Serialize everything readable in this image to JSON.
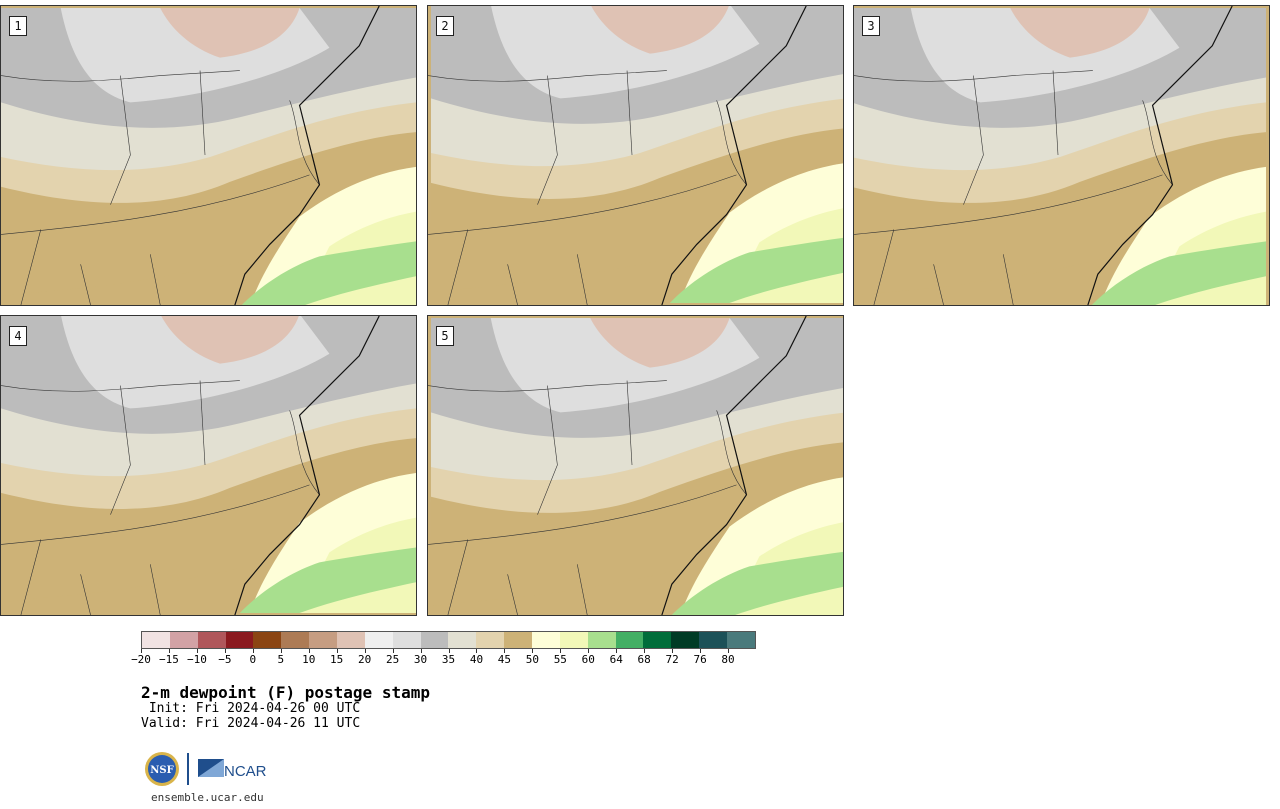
{
  "panels": [
    {
      "label": "1"
    },
    {
      "label": "2"
    },
    {
      "label": "3"
    },
    {
      "label": "4"
    },
    {
      "label": "5"
    }
  ],
  "colorbar": {
    "colors": [
      "#f1e3e3",
      "#d2a2a5",
      "#b0575b",
      "#8b1a1f",
      "#8b4513",
      "#ad7b55",
      "#c69d82",
      "#dfc2b4",
      "#efefef",
      "#dedede",
      "#bcbcbc",
      "#e2e0d2",
      "#e3d3ae",
      "#cdb277",
      "#fefed8",
      "#f2f8b8",
      "#a8df8e",
      "#43af64",
      "#006d3a",
      "#003b25",
      "#1c5158",
      "#4a7a7c"
    ],
    "ticks": [
      "−20",
      "−15",
      "−10",
      "−5",
      "0",
      "5",
      "10",
      "15",
      "20",
      "25",
      "30",
      "35",
      "40",
      "45",
      "50",
      "55",
      "60",
      "64",
      "68",
      "72",
      "76",
      "80"
    ]
  },
  "title": "2-m dewpoint (F) postage stamp",
  "init": " Init: Fri 2024-04-26 00 UTC",
  "valid": "Valid: Fri 2024-04-26 11 UTC",
  "logos": {
    "nsf": "NSF",
    "ncar": "NCAR"
  },
  "site": "ensemble.ucar.edu"
}
